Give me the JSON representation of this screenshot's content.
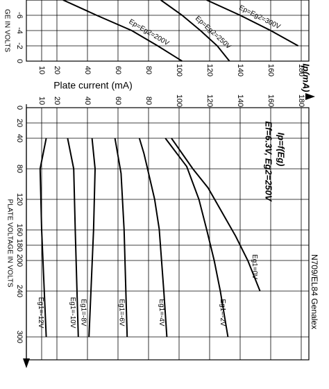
{
  "chart_data": [
    {
      "type": "line",
      "y_label": "Plate current (mA)",
      "x_label": "GE IN VOLTS",
      "xlim": [
        -8,
        0
      ],
      "xticks": [
        -6,
        -4,
        -2,
        0
      ],
      "ylim": [
        0,
        185
      ],
      "yticks": [
        10,
        20,
        40,
        60,
        80,
        100,
        120,
        140,
        160,
        180
      ],
      "grid": true,
      "series": [
        {
          "name": "Ep=Eg2=200V",
          "color": "#000000",
          "x": [
            -8,
            -6,
            -4,
            -2,
            0
          ],
          "values": [
            24,
            46,
            69,
            86,
            102
          ]
        },
        {
          "name": "Ep=Eg2=250V",
          "color": "#000000",
          "x": [
            -8,
            -6,
            -4,
            -2,
            0
          ],
          "values": [
            88,
            102,
            114,
            125,
            133
          ]
        },
        {
          "name": "Ep=Eg2=300V",
          "color": "#000000",
          "x": [
            -8,
            -6,
            -4,
            -2
          ],
          "values": [
            118,
            140,
            160,
            178
          ]
        }
      ]
    },
    {
      "type": "line",
      "title": "Ip=f(Eg)",
      "subtitle": "Ef=6.3V, Eg2=250V",
      "y_label": "Ip(mA)",
      "x_label": "PLATE VOLTAGE IN VOLTS",
      "annotation": "N709/EL84 Genalex",
      "xlim": [
        0,
        330
      ],
      "xticks": [
        0,
        20,
        40,
        80,
        120,
        160,
        180,
        200,
        240,
        300
      ],
      "ylim": [
        0,
        185
      ],
      "yticks": [
        10,
        20,
        40,
        60,
        80,
        100,
        120,
        140,
        160,
        180
      ],
      "grid": true,
      "series": [
        {
          "name": "Eg1=0V",
          "color": "#000000",
          "x": [
            40,
            60,
            80,
            105,
            140,
            168,
            200,
            240
          ],
          "values": [
            95,
            102,
            109,
            119,
            129,
            137,
            145,
            153
          ]
        },
        {
          "name": "Eg1=-2V",
          "color": "#000000",
          "x": [
            40,
            77,
            120,
            159,
            200,
            240,
            300
          ],
          "values": [
            91,
            105,
            113,
            118,
            123,
            127,
            132
          ]
        },
        {
          "name": "Eg1=-4V",
          "color": "#000000",
          "x": [
            40,
            60,
            77,
            120,
            159,
            240,
            300
          ],
          "values": [
            74,
            77,
            79,
            84,
            87,
            90,
            92
          ]
        },
        {
          "name": "Eg1=-6V",
          "color": "#000000",
          "x": [
            40,
            86,
            160,
            300
          ],
          "values": [
            58,
            62,
            64,
            66
          ]
        },
        {
          "name": "Eg1=-8V",
          "color": "#000000",
          "x": [
            40,
            80,
            160,
            300
          ],
          "values": [
            43,
            45,
            44,
            41
          ]
        },
        {
          "name": "Eg1=-10V",
          "color": "#000000",
          "x": [
            40,
            80,
            160,
            300
          ],
          "values": [
            27,
            31,
            32,
            34
          ]
        },
        {
          "name": "Eg1=-12V",
          "color": "#000000",
          "x": [
            40,
            80,
            160,
            300
          ],
          "values": [
            13,
            9,
            10,
            13
          ]
        }
      ]
    }
  ]
}
